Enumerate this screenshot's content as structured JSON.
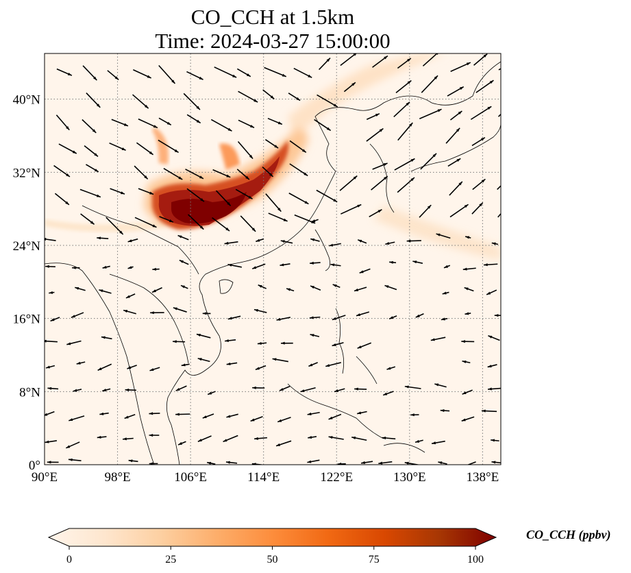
{
  "title_line1": "CO_CCH at 1.5km",
  "title_line2": "Time: 2024-03-27 15:00:00",
  "map": {
    "lon_range": [
      90,
      140
    ],
    "lat_range": [
      0,
      45
    ],
    "xtick_values": [
      90,
      98,
      106,
      114,
      122,
      130,
      138
    ],
    "ytick_values": [
      0,
      8,
      16,
      24,
      32,
      40
    ],
    "xtick_labels": [
      "90°E",
      "98°E",
      "106°E",
      "114°E",
      "122°E",
      "130°E",
      "138°E"
    ],
    "ytick_labels": [
      "0°",
      "8°N",
      "16°N",
      "24°N",
      "32°N",
      "40°N"
    ],
    "gridlines": true,
    "background_color": "#fff5eb",
    "coastline_color": "#000000"
  },
  "colorbar": {
    "label": "CO_CCH (ppbv)",
    "min": 0,
    "max": 100,
    "extend": "both",
    "tick_values": [
      0,
      25,
      50,
      75,
      100
    ],
    "tick_labels": [
      "0",
      "25",
      "50",
      "75",
      "100"
    ],
    "colors": [
      "#fff5eb",
      "#fee6ce",
      "#fdd0a2",
      "#fdae6b",
      "#fd8d3c",
      "#f16913",
      "#d94801",
      "#a63603",
      "#7f0000"
    ]
  },
  "plume_values": [
    {
      "lon": 103,
      "lat": 28,
      "value": 95
    },
    {
      "lon": 106,
      "lat": 27,
      "value": 100
    },
    {
      "lon": 108,
      "lat": 27.5,
      "value": 100
    },
    {
      "lon": 110,
      "lat": 28.5,
      "value": 95
    },
    {
      "lon": 112,
      "lat": 30,
      "value": 90
    },
    {
      "lon": 114,
      "lat": 31.5,
      "value": 80
    },
    {
      "lon": 116,
      "lat": 33,
      "value": 65
    },
    {
      "lon": 117,
      "lat": 34.5,
      "value": 45
    },
    {
      "lon": 112,
      "lat": 33,
      "value": 55
    },
    {
      "lon": 104,
      "lat": 31,
      "value": 40
    },
    {
      "lon": 119,
      "lat": 38,
      "value": 20
    },
    {
      "lon": 127,
      "lat": 27,
      "value": 10
    }
  ]
}
